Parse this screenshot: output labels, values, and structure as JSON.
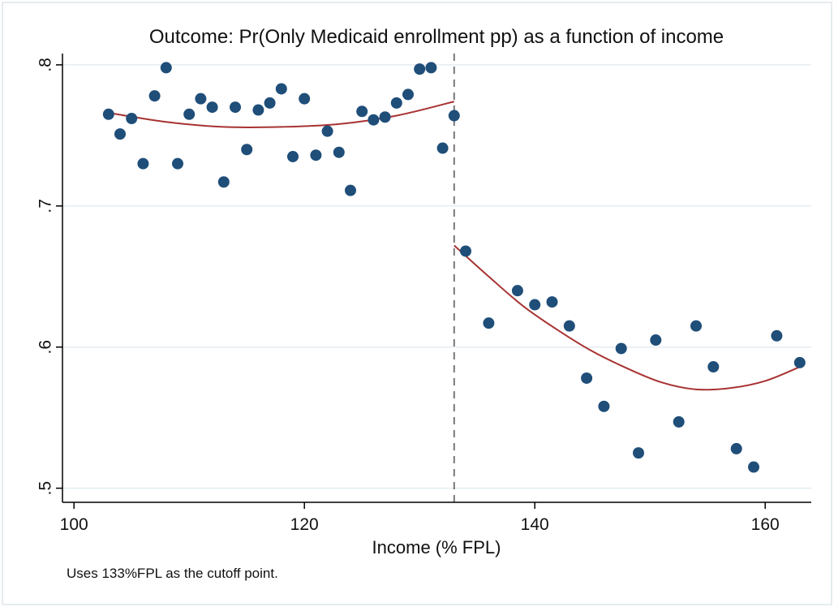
{
  "chart_data": {
    "type": "scatter",
    "title": "Outcome: Pr(Only Medicaid enrollment pp) as a function of income",
    "xlabel": "Income (% FPL)",
    "ylabel": "",
    "note": "Uses 133%FPL as the cutoff point.",
    "xlim": [
      99,
      164
    ],
    "ylim": [
      0.49,
      0.808
    ],
    "x_ticks": [
      {
        "value": 100,
        "label": "100"
      },
      {
        "value": 120,
        "label": "120"
      },
      {
        "value": 140,
        "label": "140"
      },
      {
        "value": 160,
        "label": "160"
      }
    ],
    "y_ticks": [
      {
        "value": 0.5,
        "label": ".5"
      },
      {
        "value": 0.6,
        "label": ".6"
      },
      {
        "value": 0.7,
        "label": ".7"
      },
      {
        "value": 0.8,
        "label": ".8"
      }
    ],
    "cutoff": 133,
    "grid": true,
    "colors": {
      "points": "#1f4e79",
      "fit": "#a83232",
      "cutoff": "#777777",
      "grid": "#e4ecf0"
    },
    "series": [
      {
        "x": [
          103,
          104,
          105,
          106,
          107,
          108,
          109,
          110,
          111,
          112,
          113,
          114,
          115,
          116,
          117,
          118,
          119,
          120,
          121,
          122,
          123,
          124,
          125,
          126,
          127,
          128,
          129,
          130,
          131,
          132,
          133
        ],
        "y": [
          0.765,
          0.751,
          0.762,
          0.73,
          0.778,
          0.798,
          0.73,
          0.765,
          0.776,
          0.77,
          0.717,
          0.77,
          0.74,
          0.768,
          0.773,
          0.783,
          0.735,
          0.776,
          0.736,
          0.753,
          0.738,
          0.711,
          0.767,
          0.761,
          0.763,
          0.773,
          0.779,
          0.797,
          0.798,
          0.741,
          0.764
        ]
      },
      {
        "x": [
          134,
          136,
          138.5,
          140,
          141.5,
          143,
          144.5,
          146,
          147.5,
          149,
          150.5,
          152.5,
          154,
          155.5,
          157.5,
          159,
          161,
          163
        ],
        "y": [
          0.668,
          0.617,
          0.64,
          0.63,
          0.632,
          0.615,
          0.578,
          0.558,
          0.599,
          0.525,
          0.605,
          0.547,
          0.615,
          0.586,
          0.528,
          0.515,
          0.608,
          0.589
        ]
      }
    ],
    "fits": [
      {
        "x": [
          103,
          108,
          113,
          118,
          123,
          128,
          133
        ],
        "y": [
          0.766,
          0.7595,
          0.756,
          0.756,
          0.758,
          0.764,
          0.774
        ]
      },
      {
        "x": [
          133,
          136,
          139,
          142,
          145,
          148,
          151,
          154,
          157,
          160,
          163
        ],
        "y": [
          0.672,
          0.65,
          0.629,
          0.612,
          0.597,
          0.585,
          0.575,
          0.57,
          0.571,
          0.576,
          0.586
        ]
      }
    ]
  }
}
